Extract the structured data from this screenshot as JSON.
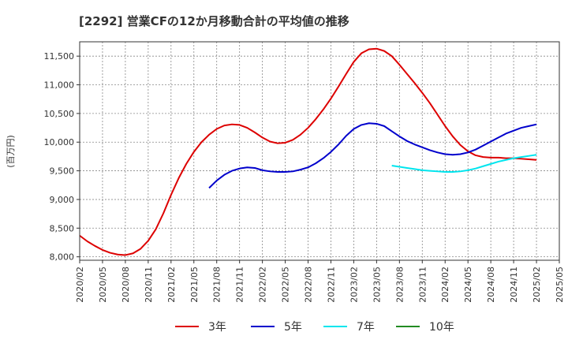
{
  "chart_data": {
    "type": "line",
    "title": "[2292]  営業CFの12か月移動合計の平均値の推移",
    "ylabel": "(百万円)",
    "xlabel": "",
    "ylim": [
      7940,
      11750
    ],
    "yticks": [
      8000,
      8500,
      9000,
      9500,
      10000,
      10500,
      11000,
      11500
    ],
    "ytick_labels": [
      "8,000",
      "8,500",
      "9,000",
      "9,500",
      "10,000",
      "10,500",
      "11,000",
      "11,500"
    ],
    "xticks": [
      "2020/02",
      "2020/05",
      "2020/08",
      "2020/11",
      "2021/02",
      "2021/05",
      "2021/08",
      "2021/11",
      "2022/02",
      "2022/05",
      "2022/08",
      "2022/11",
      "2023/02",
      "2023/05",
      "2023/08",
      "2023/11",
      "2024/02",
      "2024/05",
      "2024/08",
      "2024/11",
      "2025/02",
      "2025/05"
    ],
    "grid": true,
    "legend": "bottom",
    "series": [
      {
        "name": "3年",
        "color": "#dd0000",
        "points": [
          [
            "2020/02",
            8370
          ],
          [
            "2020/03",
            8270
          ],
          [
            "2020/04",
            8190
          ],
          [
            "2020/05",
            8120
          ],
          [
            "2020/06",
            8070
          ],
          [
            "2020/07",
            8040
          ],
          [
            "2020/08",
            8030
          ],
          [
            "2020/09",
            8060
          ],
          [
            "2020/10",
            8140
          ],
          [
            "2020/11",
            8280
          ],
          [
            "2020/12",
            8480
          ],
          [
            "2021/01",
            8760
          ],
          [
            "2021/02",
            9080
          ],
          [
            "2021/03",
            9370
          ],
          [
            "2021/04",
            9620
          ],
          [
            "2021/05",
            9830
          ],
          [
            "2021/06",
            10000
          ],
          [
            "2021/07",
            10130
          ],
          [
            "2021/08",
            10230
          ],
          [
            "2021/09",
            10290
          ],
          [
            "2021/10",
            10310
          ],
          [
            "2021/11",
            10300
          ],
          [
            "2021/12",
            10250
          ],
          [
            "2022/01",
            10170
          ],
          [
            "2022/02",
            10080
          ],
          [
            "2022/03",
            10010
          ],
          [
            "2022/04",
            9980
          ],
          [
            "2022/05",
            9990
          ],
          [
            "2022/06",
            10040
          ],
          [
            "2022/07",
            10130
          ],
          [
            "2022/08",
            10250
          ],
          [
            "2022/09",
            10400
          ],
          [
            "2022/10",
            10570
          ],
          [
            "2022/11",
            10760
          ],
          [
            "2022/12",
            10970
          ],
          [
            "2023/01",
            11190
          ],
          [
            "2023/02",
            11400
          ],
          [
            "2023/03",
            11550
          ],
          [
            "2023/04",
            11620
          ],
          [
            "2023/05",
            11630
          ],
          [
            "2023/06",
            11590
          ],
          [
            "2023/07",
            11500
          ],
          [
            "2023/08",
            11350
          ],
          [
            "2023/09",
            11190
          ],
          [
            "2023/10",
            11030
          ],
          [
            "2023/11",
            10860
          ],
          [
            "2023/12",
            10680
          ],
          [
            "2024/01",
            10480
          ],
          [
            "2024/02",
            10280
          ],
          [
            "2024/03",
            10100
          ],
          [
            "2024/04",
            9950
          ],
          [
            "2024/05",
            9840
          ],
          [
            "2024/06",
            9770
          ],
          [
            "2024/07",
            9740
          ],
          [
            "2024/08",
            9730
          ],
          [
            "2024/09",
            9730
          ],
          [
            "2024/10",
            9720
          ],
          [
            "2024/11",
            9720
          ],
          [
            "2024/12",
            9710
          ],
          [
            "2025/01",
            9700
          ],
          [
            "2025/02",
            9690
          ]
        ]
      },
      {
        "name": "5年",
        "color": "#0000cc",
        "points": [
          [
            "2021/07",
            9200
          ],
          [
            "2021/08",
            9330
          ],
          [
            "2021/09",
            9430
          ],
          [
            "2021/10",
            9500
          ],
          [
            "2021/11",
            9540
          ],
          [
            "2021/12",
            9560
          ],
          [
            "2022/01",
            9550
          ],
          [
            "2022/02",
            9510
          ],
          [
            "2022/03",
            9490
          ],
          [
            "2022/04",
            9480
          ],
          [
            "2022/05",
            9480
          ],
          [
            "2022/06",
            9490
          ],
          [
            "2022/07",
            9520
          ],
          [
            "2022/08",
            9560
          ],
          [
            "2022/09",
            9630
          ],
          [
            "2022/10",
            9720
          ],
          [
            "2022/11",
            9830
          ],
          [
            "2022/12",
            9960
          ],
          [
            "2023/01",
            10110
          ],
          [
            "2023/02",
            10230
          ],
          [
            "2023/03",
            10300
          ],
          [
            "2023/04",
            10330
          ],
          [
            "2023/05",
            10320
          ],
          [
            "2023/06",
            10280
          ],
          [
            "2023/07",
            10190
          ],
          [
            "2023/08",
            10100
          ],
          [
            "2023/09",
            10020
          ],
          [
            "2023/10",
            9960
          ],
          [
            "2023/11",
            9910
          ],
          [
            "2023/12",
            9860
          ],
          [
            "2024/01",
            9820
          ],
          [
            "2024/02",
            9790
          ],
          [
            "2024/03",
            9780
          ],
          [
            "2024/04",
            9790
          ],
          [
            "2024/05",
            9820
          ],
          [
            "2024/06",
            9870
          ],
          [
            "2024/07",
            9940
          ],
          [
            "2024/08",
            10010
          ],
          [
            "2024/09",
            10080
          ],
          [
            "2024/10",
            10150
          ],
          [
            "2024/11",
            10200
          ],
          [
            "2024/12",
            10250
          ],
          [
            "2025/01",
            10280
          ],
          [
            "2025/02",
            10310
          ]
        ]
      },
      {
        "name": "7年",
        "color": "#00e5ee",
        "points": [
          [
            "2023/07",
            9590
          ],
          [
            "2023/08",
            9570
          ],
          [
            "2023/09",
            9550
          ],
          [
            "2023/10",
            9530
          ],
          [
            "2023/11",
            9510
          ],
          [
            "2023/12",
            9500
          ],
          [
            "2024/01",
            9490
          ],
          [
            "2024/02",
            9480
          ],
          [
            "2024/03",
            9480
          ],
          [
            "2024/04",
            9490
          ],
          [
            "2024/05",
            9510
          ],
          [
            "2024/06",
            9540
          ],
          [
            "2024/07",
            9580
          ],
          [
            "2024/08",
            9620
          ],
          [
            "2024/09",
            9660
          ],
          [
            "2024/10",
            9690
          ],
          [
            "2024/11",
            9720
          ],
          [
            "2024/12",
            9740
          ],
          [
            "2025/01",
            9760
          ],
          [
            "2025/02",
            9780
          ]
        ]
      },
      {
        "name": "10年",
        "color": "#228b22",
        "points": []
      }
    ]
  }
}
